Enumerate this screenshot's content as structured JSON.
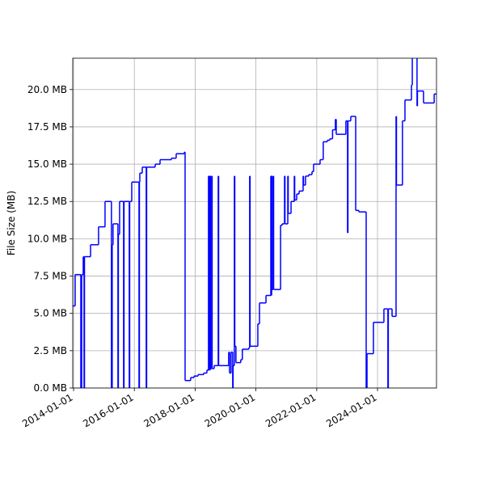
{
  "chart_data": {
    "type": "line",
    "step": "post",
    "ylabel": "File Size (MB)",
    "color": "#0000ff",
    "grid": true,
    "xlim": [
      "2013-12-22",
      "2025-12-10"
    ],
    "xticks": [
      "2014-01-01",
      "2016-01-01",
      "2018-01-01",
      "2020-01-01",
      "2022-01-01",
      "2024-01-01"
    ],
    "ylim": [
      0,
      22.1
    ],
    "yticks": [
      {
        "value": 0,
        "label": "0.0 MB"
      },
      {
        "value": 2.5,
        "label": "2.5 MB"
      },
      {
        "value": 5,
        "label": "5.0 MB"
      },
      {
        "value": 7.5,
        "label": "7.5 MB"
      },
      {
        "value": 10,
        "label": "10.0 MB"
      },
      {
        "value": 12.5,
        "label": "12.5 MB"
      },
      {
        "value": 15,
        "label": "15.0 MB"
      },
      {
        "value": 17.5,
        "label": "17.5 MB"
      },
      {
        "value": 20,
        "label": "20.0 MB"
      }
    ],
    "x": [
      "2013-12-22",
      "2014-01-20",
      "2014-03-29",
      "2014-04-08",
      "2014-04-27",
      "2014-05-07",
      "2014-05-12",
      "2014-07-24",
      "2014-10-28",
      "2015-01-14",
      "2015-04-01",
      "2015-04-10",
      "2015-04-20",
      "2015-06-18",
      "2015-06-23",
      "2015-07-08",
      "2015-08-25",
      "2015-08-30",
      "2015-11-01",
      "2015-11-06",
      "2015-12-01",
      "2016-02-26",
      "2016-03-02",
      "2016-03-07",
      "2016-04-05",
      "2016-05-23",
      "2016-05-28",
      "2016-09-08",
      "2016-11-05",
      "2017-03-21",
      "2017-05-18",
      "2017-08-23",
      "2017-09-02",
      "2017-11-08",
      "2017-12-18",
      "2018-02-05",
      "2018-04-13",
      "2018-05-22",
      "2018-06-10",
      "2018-06-15",
      "2018-06-20",
      "2018-06-25",
      "2018-06-30",
      "2018-07-05",
      "2018-07-19",
      "2018-07-24",
      "2018-08-17",
      "2018-10-05",
      "2018-10-10",
      "2019-02-08",
      "2019-02-18",
      "2019-03-08",
      "2019-03-28",
      "2019-04-02",
      "2019-04-17",
      "2019-04-22",
      "2019-05-06",
      "2019-07-03",
      "2019-07-22",
      "2019-10-08",
      "2019-10-18",
      "2019-10-23",
      "2020-01-24",
      "2020-02-13",
      "2020-05-01",
      "2020-06-28",
      "2020-07-03",
      "2020-07-08",
      "2020-07-13",
      "2020-07-27",
      "2020-08-01",
      "2020-10-23",
      "2020-11-11",
      "2020-12-10",
      "2020-12-15",
      "2021-01-18",
      "2021-01-23",
      "2021-02-26",
      "2021-04-06",
      "2021-04-11",
      "2021-05-05",
      "2021-06-03",
      "2021-07-21",
      "2021-07-26",
      "2021-08-19",
      "2021-09-27",
      "2021-11-05",
      "2021-11-24",
      "2022-02-10",
      "2022-03-20",
      "2022-05-08",
      "2022-06-07",
      "2022-07-10",
      "2022-08-13",
      "2022-08-23",
      "2022-12-17",
      "2023-01-06",
      "2023-01-11",
      "2023-02-14",
      "2023-04-14",
      "2023-05-22",
      "2023-08-18",
      "2023-08-28",
      "2023-11-13",
      "2024-03-18",
      "2024-05-05",
      "2024-05-10",
      "2024-06-24",
      "2024-08-11",
      "2024-08-16",
      "2024-10-27",
      "2024-11-26",
      "2025-02-12",
      "2025-02-22",
      "2025-04-20",
      "2025-04-25",
      "2025-07-07",
      "2025-11-12"
    ],
    "values": [
      5.5,
      7.6,
      0,
      7.6,
      8.8,
      0,
      8.8,
      9.6,
      10.8,
      12.5,
      0,
      9.6,
      11.0,
      0,
      10.3,
      12.5,
      0,
      12.5,
      0,
      12.5,
      13.8,
      0,
      13.8,
      14.4,
      14.8,
      0,
      14.8,
      15.0,
      15.3,
      15.4,
      15.7,
      15.8,
      0.5,
      0.7,
      0.8,
      0.9,
      1.0,
      1.2,
      14.2,
      1.2,
      14.2,
      1.2,
      14.2,
      1.3,
      14.2,
      1.3,
      1.5,
      14.2,
      1.5,
      2.4,
      1.0,
      2.4,
      0,
      1.5,
      14.2,
      2.8,
      1.7,
      1.9,
      2.6,
      2.7,
      14.2,
      2.8,
      4.3,
      5.7,
      6.2,
      14.2,
      6.2,
      14.2,
      6.6,
      14.2,
      6.6,
      10.9,
      11.0,
      14.2,
      11.0,
      14.2,
      11.7,
      12.5,
      14.2,
      12.6,
      13.0,
      13.2,
      14.2,
      13.6,
      14.2,
      14.3,
      14.5,
      15.0,
      15.3,
      16.5,
      16.6,
      16.7,
      17.3,
      18.0,
      17.0,
      17.9,
      10.4,
      17.9,
      18.2,
      11.9,
      11.8,
      0,
      2.3,
      4.4,
      5.3,
      0,
      5.3,
      4.8,
      18.2,
      13.6,
      17.9,
      19.3,
      20.3,
      22.5,
      18.9,
      19.9,
      19.1,
      19.7
    ]
  }
}
